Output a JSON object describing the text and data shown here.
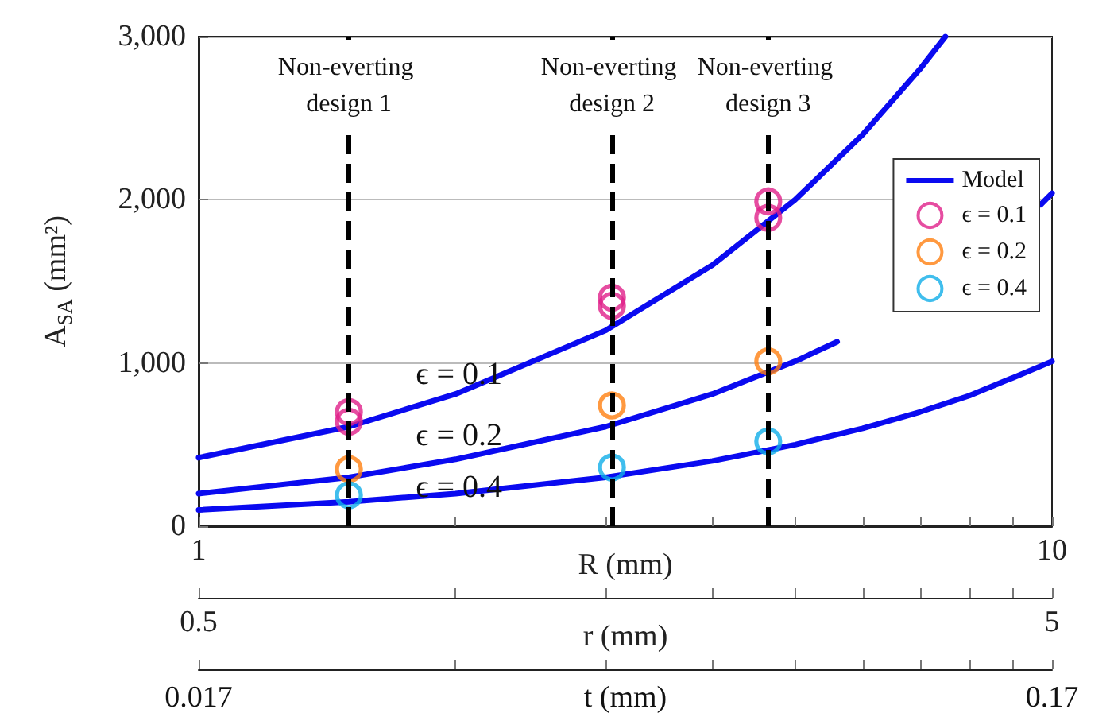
{
  "chart_data": {
    "type": "line",
    "xlabel": "R (mm)",
    "x2label": "r (mm)",
    "ylabel": "A$_{SA}$ (mm²)",
    "log": "x",
    "grid": "y",
    "legend": "right",
    "xlim": [
      1,
      10
    ],
    "xticks": [
      1,
      {
        "value": 2,
        "label": null
      },
      {
        "value": 3,
        "label": null
      },
      {
        "value": 4,
        "label": null
      },
      {
        "value": 5,
        "label": null
      },
      {
        "value": 6,
        "label": null
      },
      {
        "value": 7,
        "label": null
      },
      {
        "value": 8,
        "label": null
      },
      {
        "value": 9,
        "label": null
      },
      10
    ],
    "x2lim": [
      0.5,
      5
    ],
    "x2ticks": [
      0.5,
      5
    ],
    "ylim": [
      0,
      3000
    ],
    "yticks": [
      0,
      {
        "value": 1000,
        "label": "1,000"
      },
      {
        "value": 2000,
        "label": "2,000"
      },
      {
        "value": 3000,
        "label": "3,000"
      }
    ],
    "series": [
      {
        "name": "Model",
        "marker": "none",
        "line_style": "solid",
        "color": "#0a0af0",
        "x": [
          1,
          1.5,
          2,
          3,
          4,
          5,
          6,
          7,
          7.5
        ],
        "values": [
          420,
          610,
          810,
          1200,
          1600,
          2000,
          2400,
          2800,
          3000
        ]
      },
      {
        "marker": "none",
        "line_style": "solid",
        "color": "#0a0af0",
        "x": [
          1,
          1.5,
          2,
          3,
          4,
          5,
          5.6,
          7,
          8,
          9,
          9.7,
          10
        ],
        "values": [
          200,
          300,
          410,
          610,
          810,
          1010,
          1130,
          null,
          null,
          null,
          1970,
          2040
        ]
      },
      {
        "marker": "none",
        "line_style": "solid",
        "color": "#0a0af0",
        "x": [
          1,
          1.5,
          2,
          3,
          4,
          5,
          6,
          7,
          8,
          9,
          10
        ],
        "values": [
          100,
          150,
          200,
          300,
          400,
          500,
          600,
          700,
          800,
          910,
          1010
        ]
      },
      {
        "name": "ϵ = 0.1",
        "type": "scatter",
        "marker": "circle",
        "color": "#e0218a",
        "x": [
          1.5,
          1.5,
          3.05,
          3.05,
          4.65,
          4.65
        ],
        "values": [
          700,
          640,
          1400,
          1350,
          1990,
          1890
        ]
      },
      {
        "name": "ϵ = 0.2",
        "type": "scatter",
        "marker": "circle",
        "color": "#ff8010",
        "x": [
          1.5,
          3.05,
          4.65
        ],
        "values": [
          350,
          740,
          1010
        ]
      },
      {
        "name": "ϵ = 0.4",
        "type": "scatter",
        "marker": "circle",
        "color": "#10aee8",
        "x": [
          1.5,
          3.05,
          4.65
        ],
        "values": [
          190,
          360,
          520
        ]
      }
    ],
    "ref_lines": [
      {
        "axis": "x",
        "value": 1.5,
        "label": "Non-everting design 1",
        "color": "#000000",
        "line_style": "dashed"
      },
      {
        "axis": "x",
        "value": 3.05,
        "label": "Non-everting design 2",
        "color": "#000000",
        "line_style": "dashed"
      },
      {
        "axis": "x",
        "value": 4.65,
        "label": "Non-everting design 3",
        "color": "#000000",
        "line_style": "dashed"
      }
    ],
    "annotations": [
      "ϵ = 0.1",
      "ϵ = 0.2",
      "ϵ = 0.4",
      "t (mm)",
      "0.017",
      "0.17"
    ]
  }
}
